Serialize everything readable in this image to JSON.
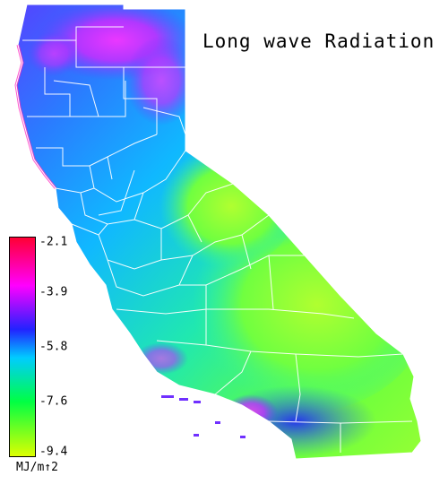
{
  "title": "Long wave Radiation",
  "legend": {
    "ticks": [
      "-2.1",
      "-3.9",
      "-5.8",
      "-7.6",
      "-9.4"
    ],
    "tick_values": [
      -2.1,
      -3.9,
      -5.8,
      -7.6,
      -9.4
    ],
    "unit": "MJ/m↑2",
    "colors": {
      "max": "#ff0033",
      "high": "#ff00ff",
      "mid_high": "#2222ff",
      "mid": "#00ccff",
      "mid_low": "#00ff44",
      "min": "#ddff00"
    }
  },
  "map": {
    "region": "California",
    "boundary_color": "#ffffff"
  }
}
